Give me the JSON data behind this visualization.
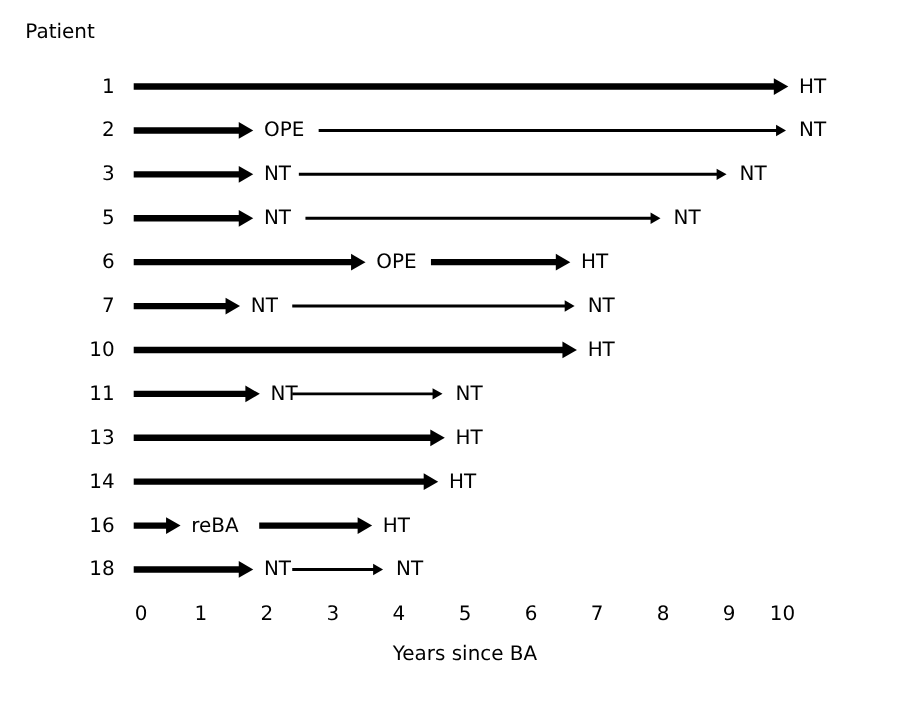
{
  "chart_data": {
    "type": "bar",
    "orientation": "horizontal",
    "ylabel": "Patient",
    "xlabel": "Years since BA",
    "categories": [
      "1",
      "2",
      "3",
      "5",
      "6",
      "7",
      "10",
      "11",
      "13",
      "14",
      "16",
      "18"
    ],
    "xlim": [
      0,
      10
    ],
    "xticks": [
      0,
      1,
      2,
      3,
      4,
      5,
      6,
      7,
      8,
      9,
      10
    ],
    "grid": false,
    "marker": "triangle",
    "series": [
      {
        "color": "#000000",
        "base": [
          0,
          0,
          0,
          0,
          0,
          0,
          0,
          0,
          0,
          0,
          0,
          0
        ],
        "values": [
          9.8,
          1.7,
          1.7,
          1.7,
          3.4,
          1.5,
          6.6,
          1.8,
          4.6,
          4.5,
          0.6,
          1.7
        ]
      },
      {
        "color": "#000000",
        "base": [
          null,
          2.8,
          2.5,
          2.6,
          null,
          2.4,
          null,
          2.4,
          null,
          null,
          null,
          2.4
        ],
        "values": [
          null,
          7.0,
          6.4,
          5.3,
          null,
          4.2,
          null,
          2.2,
          null,
          null,
          null,
          1.3
        ]
      },
      {
        "color": "#000000",
        "base": [
          null,
          null,
          null,
          null,
          4.5,
          null,
          null,
          null,
          null,
          null,
          1.9,
          null
        ],
        "values": [
          null,
          null,
          null,
          null,
          2.0,
          null,
          null,
          null,
          null,
          null,
          1.6,
          null
        ]
      }
    ],
    "annotations": [
      {
        "text": "HT",
        "x": 9.8,
        "y": "1"
      },
      {
        "text": "OPE",
        "x": 1.7,
        "y": "2"
      },
      {
        "text": "NT",
        "x": 9.8,
        "y": "2"
      },
      {
        "text": "NT",
        "x": 1.7,
        "y": "3"
      },
      {
        "text": "NT",
        "x": 8.9,
        "y": "3"
      },
      {
        "text": "NT",
        "x": 1.7,
        "y": "5"
      },
      {
        "text": "NT",
        "x": 7.9,
        "y": "5"
      },
      {
        "text": "OPE",
        "x": 3.4,
        "y": "6"
      },
      {
        "text": "HT",
        "x": 6.5,
        "y": "6"
      },
      {
        "text": "NT",
        "x": 1.5,
        "y": "7"
      },
      {
        "text": "NT",
        "x": 6.6,
        "y": "7"
      },
      {
        "text": "HT",
        "x": 6.6,
        "y": "10"
      },
      {
        "text": "NT",
        "x": 1.8,
        "y": "11"
      },
      {
        "text": "NT",
        "x": 4.6,
        "y": "11"
      },
      {
        "text": "HT",
        "x": 4.6,
        "y": "13"
      },
      {
        "text": "HT",
        "x": 4.5,
        "y": "14"
      },
      {
        "text": "reBA",
        "x": 0.6,
        "y": "16"
      },
      {
        "text": "HT",
        "x": 3.5,
        "y": "16"
      },
      {
        "text": "NT",
        "x": 1.7,
        "y": "18"
      },
      {
        "text": "NT",
        "x": 3.7,
        "y": "18"
      }
    ]
  }
}
